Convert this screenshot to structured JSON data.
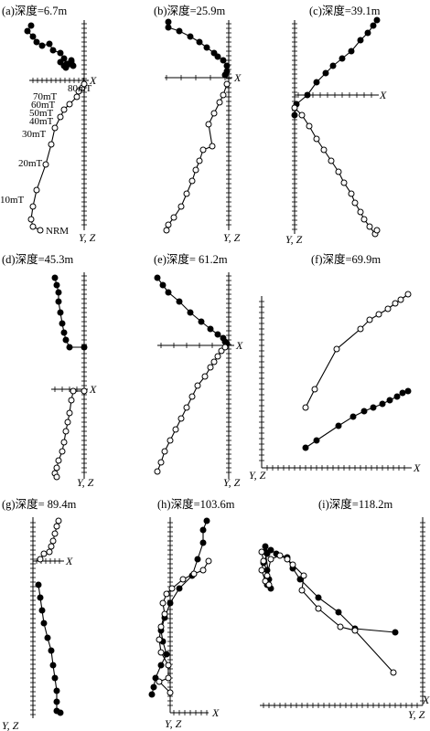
{
  "colors": {
    "ink": "#000000",
    "background": "#ffffff",
    "open_marker_fill": "#ffffff"
  },
  "axis_labels": {
    "x": "X",
    "yz": "Y, Z"
  },
  "chart_data": [
    {
      "type": "scatter",
      "title": "(a)深度=6.7m",
      "projection": "orthogonal vector (Zijderveld) diagram",
      "x_axis_label": "X",
      "y_axis_label": "Y, Z",
      "series": [
        {
          "name": "",
          "marker": "filled",
          "points": [
            [
              -60,
              0
            ],
            [
              -20,
              -8
            ],
            [
              0,
              -16
            ],
            [
              2,
              -28
            ],
            [
              8,
              -34
            ],
            [
              18,
              -40
            ],
            [
              30,
              -44
            ],
            [
              40,
              -48
            ],
            [
              50,
              -52
            ],
            [
              56,
              -56
            ],
            [
              62,
              -50
            ],
            [
              66,
              -54
            ],
            [
              72,
              -50
            ],
            [
              76,
              -56
            ],
            [
              82,
              -52
            ],
            [
              86,
              -56
            ],
            [
              90,
              -50
            ],
            [
              94,
              -46
            ],
            [
              96,
              -44
            ]
          ]
        },
        {
          "name": "",
          "marker": "open",
          "points": [
            [
              -13,
              0
            ],
            [
              -10,
              -4
            ],
            [
              -5,
              -10
            ],
            [
              5,
              -18
            ],
            [
              15,
              -24
            ],
            [
              24,
              -30
            ],
            [
              28,
              -34
            ],
            [
              32,
              -38
            ],
            [
              38,
              -44
            ],
            [
              44,
              -48
            ],
            [
              48,
              -52
            ],
            [
              53,
              -55
            ],
            [
              58,
              -56
            ],
            [
              63,
              -57
            ],
            [
              70,
              -55
            ],
            [
              78,
              -54
            ],
            [
              83,
              -52
            ],
            [
              88,
              -50
            ],
            [
              93,
              -48
            ],
            [
              96,
              -47
            ]
          ]
        }
      ],
      "annotations": [
        "NRM",
        "10mT",
        "20mT",
        "30mT",
        "40mT",
        "50mT",
        "60mT",
        "70mT",
        "80mT"
      ]
    },
    {
      "type": "scatter",
      "title": "(b)深度=25.9m",
      "x_axis_label": "X",
      "y_axis_label": "Y, Z",
      "series": [
        {
          "name": "",
          "marker": "filled",
          "points": [
            [
              -60,
              0
            ],
            [
              -30,
              -40
            ],
            [
              -5,
              -50
            ],
            [
              25,
              -55
            ],
            [
              50,
              -60
            ],
            [
              75,
              -65
            ],
            [
              95,
              -62
            ]
          ]
        },
        {
          "name": "",
          "marker": "open",
          "points": [
            [
              -68,
              0
            ],
            [
              -60,
              -4
            ],
            [
              -40,
              -22
            ],
            [
              -10,
              -30
            ],
            [
              20,
              -32
            ],
            [
              40,
              -34
            ],
            [
              70,
              -28
            ],
            [
              80,
              -22
            ],
            [
              92,
              -15
            ]
          ]
        }
      ]
    },
    {
      "type": "scatter",
      "title": "(c)深度=39.1m",
      "x_axis_label": "X",
      "y_axis_label": "Y, Z",
      "series": [
        {
          "name": "",
          "marker": "filled",
          "points": [
            [
              -26,
              0
            ],
            [
              -20,
              -8
            ],
            [
              -10,
              -16
            ],
            [
              5,
              -25
            ],
            [
              30,
              -40
            ],
            [
              60,
              -60
            ],
            [
              90,
              -80
            ],
            [
              110,
              -90
            ],
            [
              130,
              -95
            ]
          ]
        },
        {
          "name": "",
          "marker": "open",
          "points": [
            [
              -30,
              0
            ],
            [
              -20,
              -6
            ],
            [
              -10,
              -10
            ],
            [
              20,
              -18
            ],
            [
              50,
              -28
            ],
            [
              80,
              -40
            ],
            [
              110,
              -52
            ],
            [
              130,
              -60
            ],
            [
              145,
              -72
            ]
          ]
        }
      ]
    },
    {
      "type": "scatter",
      "title": "(d)深度=45.3m",
      "x_axis_label": "X",
      "y_axis_label": "Y, Z",
      "series": [
        {
          "name": "",
          "marker": "filled",
          "points": [
            [
              -75,
              0
            ],
            [
              -65,
              -5
            ],
            [
              -55,
              -8
            ],
            [
              -40,
              -12
            ],
            [
              -30,
              -20
            ],
            [
              -15,
              -22
            ],
            [
              -10,
              -28
            ],
            [
              -5,
              -30
            ],
            [
              0,
              -30
            ]
          ]
        },
        {
          "name": "",
          "marker": "open",
          "points": [
            [
              -100,
              0
            ],
            [
              -80,
              -2
            ],
            [
              -60,
              -4
            ],
            [
              -40,
              -8
            ],
            [
              -20,
              -12
            ],
            [
              -10,
              -18
            ],
            [
              -3,
              -20
            ],
            [
              -2,
              -10
            ]
          ]
        }
      ]
    },
    {
      "type": "scatter",
      "title": "(e)深度= 61.2m",
      "x_axis_label": "X",
      "y_axis_label": "Y, Z",
      "series": [
        {
          "name": "",
          "marker": "filled",
          "points": [
            [
              -80,
              0
            ],
            [
              -55,
              -20
            ],
            [
              -30,
              -40
            ],
            [
              -10,
              -55
            ],
            [
              5,
              -65
            ],
            [
              10,
              -70
            ],
            [
              12,
              -75
            ],
            [
              15,
              -78
            ]
          ]
        },
        {
          "name": "",
          "marker": "open",
          "points": [
            [
              -150,
              0
            ],
            [
              -120,
              -6
            ],
            [
              -80,
              -20
            ],
            [
              -40,
              -35
            ],
            [
              -10,
              -50
            ],
            [
              5,
              -62
            ],
            [
              10,
              -70
            ],
            [
              15,
              -76
            ]
          ]
        }
      ]
    },
    {
      "type": "scatter",
      "title": "(f)深度=69.9m",
      "x_axis_label": "X",
      "y_axis_label": "Y, Z",
      "series": [
        {
          "name": "",
          "marker": "filled",
          "points": [
            [
              10,
              -10
            ],
            [
              20,
              -12
            ],
            [
              40,
              -15
            ],
            [
              80,
              -20
            ],
            [
              110,
              -30
            ],
            [
              130,
              -35
            ],
            [
              150,
              -38
            ],
            [
              160,
              -40
            ],
            [
              170,
              -45
            ]
          ]
        },
        {
          "name": "",
          "marker": "open",
          "points": [
            [
              10,
              -40
            ],
            [
              20,
              -45
            ],
            [
              40,
              -55
            ],
            [
              80,
              -70
            ],
            [
              110,
              -80
            ],
            [
              130,
              -85
            ],
            [
              150,
              -88
            ],
            [
              160,
              -92
            ],
            [
              170,
              -95
            ]
          ]
        }
      ]
    },
    {
      "type": "scatter",
      "title": "(g)深度= 89.4m",
      "x_axis_label": "X",
      "y_axis_label": "Y, Z",
      "series": [
        {
          "name": "",
          "marker": "filled",
          "points": [
            [
              -15,
              0
            ],
            [
              -30,
              -3
            ],
            [
              -60,
              -6
            ],
            [
              -80,
              -10
            ],
            [
              -100,
              -14
            ],
            [
              -120,
              -18
            ],
            [
              -135,
              -22
            ],
            [
              -145,
              -25
            ],
            [
              -150,
              -27
            ]
          ]
        },
        {
          "name": "",
          "marker": "open",
          "points": [
            [
              10,
              0
            ],
            [
              18,
              -4
            ],
            [
              25,
              -8
            ],
            [
              30,
              -12
            ],
            [
              28,
              -16
            ],
            [
              32,
              -20
            ],
            [
              35,
              -22
            ]
          ]
        }
      ]
    },
    {
      "type": "scatter",
      "title": "(h)深度=103.6m",
      "x_axis_label": "X",
      "y_axis_label": "Y, Z",
      "series": [
        {
          "name": "",
          "marker": "filled",
          "points": [
            [
              -180,
              -30
            ],
            [
              -150,
              -28
            ],
            [
              -120,
              -25
            ],
            [
              -90,
              -20
            ],
            [
              -60,
              -15
            ],
            [
              -30,
              -10
            ],
            [
              10,
              -5
            ],
            [
              40,
              -2
            ],
            [
              70,
              0
            ],
            [
              100,
              -5
            ],
            [
              120,
              -8
            ],
            [
              140,
              -10
            ]
          ]
        },
        {
          "name": "",
          "marker": "open",
          "points": [
            [
              -185,
              -5
            ],
            [
              -160,
              -10
            ],
            [
              -130,
              -15
            ],
            [
              -100,
              -18
            ],
            [
              -70,
              -20
            ],
            [
              -40,
              -22
            ],
            [
              -10,
              -20
            ],
            [
              20,
              -18
            ],
            [
              50,
              -10
            ],
            [
              80,
              -5
            ],
            [
              100,
              0
            ]
          ]
        }
      ]
    },
    {
      "type": "scatter",
      "title": "(i)深度=118.2m",
      "x_axis_label": "X",
      "y_axis_label": "Y, Z",
      "series": [
        {
          "name": "",
          "marker": "filled",
          "points": [
            [
              -150,
              0
            ],
            [
              -120,
              -20
            ],
            [
              -90,
              -40
            ],
            [
              -60,
              -55
            ],
            [
              -40,
              -60
            ],
            [
              -20,
              -62
            ],
            [
              0,
              -60
            ],
            [
              20,
              -63
            ],
            [
              40,
              -62
            ]
          ]
        },
        {
          "name": "",
          "marker": "open",
          "points": [
            [
              -150,
              -15
            ],
            [
              -120,
              -25
            ],
            [
              -90,
              -40
            ],
            [
              -60,
              -50
            ],
            [
              -40,
              -58
            ],
            [
              -20,
              -60
            ],
            [
              0,
              -59
            ],
            [
              20,
              -58
            ],
            [
              40,
              -57
            ]
          ]
        }
      ]
    }
  ]
}
